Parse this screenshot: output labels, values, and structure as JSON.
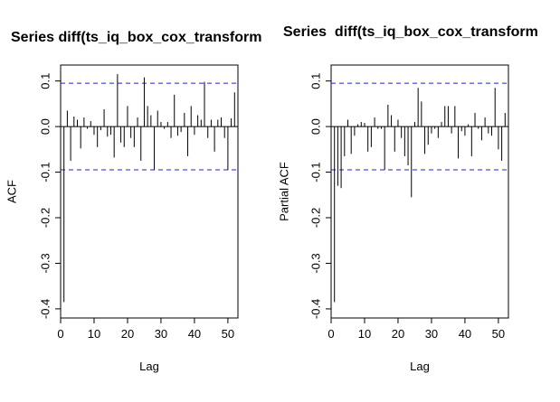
{
  "chart_data": [
    {
      "type": "bar",
      "title": "Series diff(ts_iq_box_cox_transform",
      "xlabel": "Lag",
      "ylabel": "ACF",
      "xlim": [
        0,
        53
      ],
      "ylim": [
        -0.42,
        0.135
      ],
      "xticks": [
        0,
        10,
        20,
        30,
        40,
        50
      ],
      "yticks": [
        -0.4,
        -0.3,
        -0.2,
        -0.1,
        0.0,
        0.1
      ],
      "ytick_labels": [
        "-0.4",
        "-0.3",
        "-0.2",
        "-0.1",
        "0.0",
        "0.1"
      ],
      "confidence_limit": 0.095,
      "lags": [
        1,
        2,
        3,
        4,
        5,
        6,
        7,
        8,
        9,
        10,
        11,
        12,
        13,
        14,
        15,
        16,
        17,
        18,
        19,
        20,
        21,
        22,
        23,
        24,
        25,
        26,
        27,
        28,
        29,
        30,
        31,
        32,
        33,
        34,
        35,
        36,
        37,
        38,
        39,
        40,
        41,
        42,
        43,
        44,
        45,
        46,
        47,
        48,
        49,
        50,
        51,
        52
      ],
      "values": [
        -0.385,
        0.035,
        -0.075,
        0.022,
        0.015,
        -0.048,
        0.02,
        -0.005,
        0.012,
        -0.018,
        -0.045,
        -0.008,
        0.038,
        -0.022,
        -0.018,
        -0.068,
        0.115,
        -0.035,
        -0.045,
        0.045,
        -0.025,
        -0.045,
        0.02,
        -0.075,
        0.108,
        0.045,
        0.025,
        -0.095,
        0.035,
        0.01,
        -0.005,
        0.01,
        -0.025,
        0.07,
        -0.02,
        -0.012,
        0.03,
        -0.065,
        0.045,
        -0.018,
        0.025,
        0.015,
        0.098,
        -0.025,
        0.015,
        -0.055,
        0.015,
        0.02,
        -0.025,
        -0.095,
        0.018,
        0.075
      ]
    },
    {
      "type": "bar",
      "title": "Series  diff(ts_iq_box_cox_transform",
      "xlabel": "Lag",
      "ylabel": "Partial ACF",
      "xlim": [
        0,
        53
      ],
      "ylim": [
        -0.42,
        0.135
      ],
      "xticks": [
        0,
        10,
        20,
        30,
        40,
        50
      ],
      "yticks": [
        -0.4,
        -0.3,
        -0.2,
        -0.1,
        0.0,
        0.1
      ],
      "ytick_labels": [
        "-0.4",
        "-0.3",
        "-0.2",
        "-0.1",
        "0.0",
        "0.1"
      ],
      "confidence_limit": 0.095,
      "lags": [
        1,
        2,
        3,
        4,
        5,
        6,
        7,
        8,
        9,
        10,
        11,
        12,
        13,
        14,
        15,
        16,
        17,
        18,
        19,
        20,
        21,
        22,
        23,
        24,
        25,
        26,
        27,
        28,
        29,
        30,
        31,
        32,
        33,
        34,
        35,
        36,
        37,
        38,
        39,
        40,
        41,
        42,
        43,
        44,
        45,
        46,
        47,
        48,
        49,
        50,
        51,
        52
      ],
      "values": [
        -0.385,
        -0.13,
        -0.135,
        -0.065,
        0.015,
        -0.06,
        -0.02,
        0.005,
        0.01,
        0.008,
        -0.055,
        -0.045,
        0.02,
        -0.005,
        -0.005,
        -0.095,
        0.048,
        0.025,
        -0.055,
        0.015,
        -0.025,
        -0.065,
        -0.085,
        -0.155,
        0.01,
        0.085,
        0.055,
        -0.06,
        -0.04,
        -0.015,
        -0.005,
        -0.025,
        0.01,
        0.045,
        0.045,
        -0.015,
        0.045,
        -0.07,
        -0.01,
        -0.02,
        0.005,
        -0.065,
        0.03,
        -0.005,
        -0.03,
        0.02,
        -0.015,
        -0.02,
        0.085,
        -0.05,
        -0.075,
        0.03
      ]
    }
  ]
}
